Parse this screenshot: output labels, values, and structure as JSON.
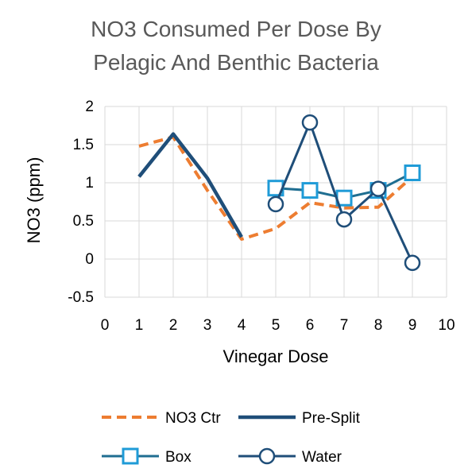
{
  "chart_data": {
    "type": "line",
    "title_lines": [
      "NO3 Consumed Per Dose By",
      "Pelagic And Benthic Bacteria"
    ],
    "xlabel": "Vinegar Dose",
    "ylabel": "NO3 (ppm)",
    "xlim": [
      0,
      10
    ],
    "ylim": [
      -0.5,
      2
    ],
    "x_ticks": [
      "0",
      "1",
      "2",
      "3",
      "4",
      "5",
      "6",
      "7",
      "8",
      "9",
      "10"
    ],
    "y_ticks": [
      "2",
      "1.5",
      "1",
      "0.5",
      "0",
      "-0.5"
    ],
    "grid": true,
    "legend_position": "bottom",
    "series": [
      {
        "name": "NO3 Ctr",
        "color": "#ED7D31",
        "style": "dashed",
        "marker": "none",
        "x": [
          1,
          2,
          3,
          4,
          5,
          6,
          7,
          8,
          9
        ],
        "y": [
          1.48,
          1.6,
          0.9,
          0.26,
          0.4,
          0.74,
          0.67,
          0.68,
          1.08
        ]
      },
      {
        "name": "Pre-Split",
        "color": "#1F4E79",
        "style": "solid-thick",
        "marker": "none",
        "x": [
          1,
          2,
          3,
          4
        ],
        "y": [
          1.08,
          1.64,
          1.06,
          0.29
        ]
      },
      {
        "name": "Box",
        "color": "#1F6E91",
        "style": "solid",
        "marker": "square",
        "x": [
          5,
          6,
          7,
          8,
          9
        ],
        "y": [
          0.93,
          0.9,
          0.8,
          0.9,
          1.13
        ]
      },
      {
        "name": "Water",
        "color": "#1F4E79",
        "style": "solid",
        "marker": "circle",
        "x": [
          5,
          6,
          7,
          8,
          9
        ],
        "y": [
          0.72,
          1.79,
          0.52,
          0.92,
          -0.05
        ]
      }
    ]
  }
}
